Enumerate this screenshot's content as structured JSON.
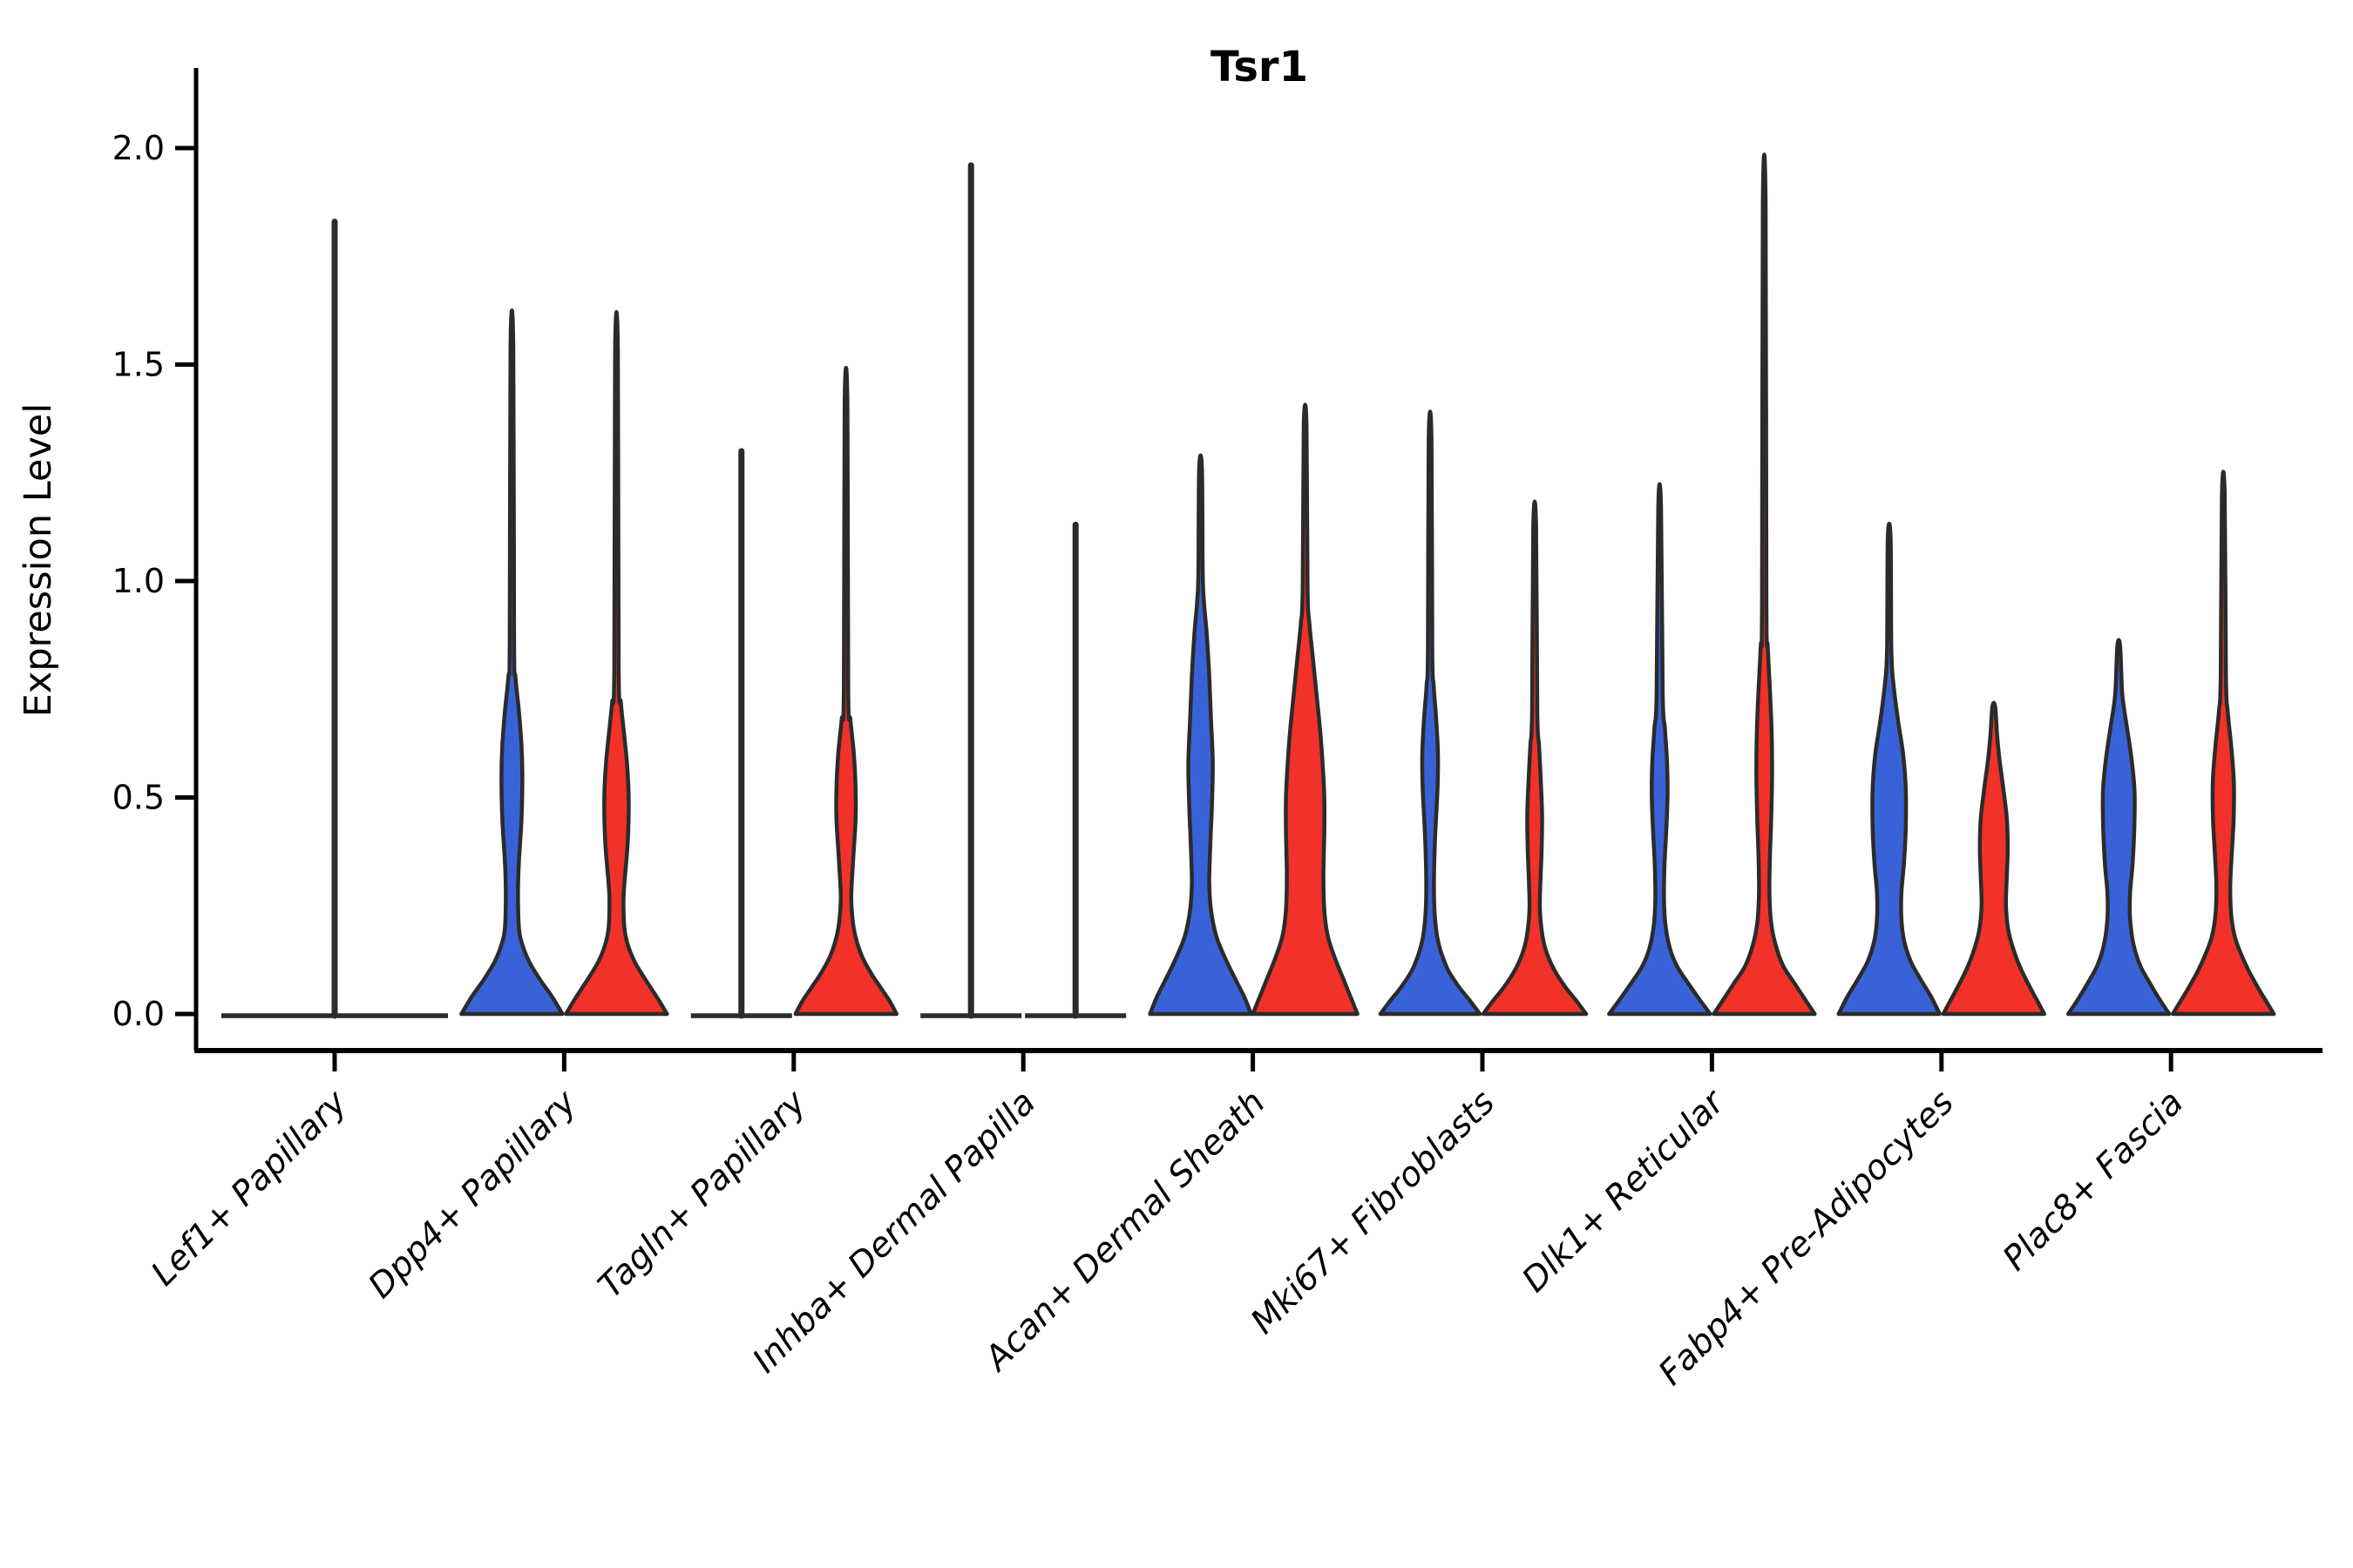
{
  "chart_data": {
    "type": "violin",
    "title": "Tsr1",
    "ylabel": "Expression Level",
    "xlabel": "",
    "ylim": [
      0.0,
      2.05
    ],
    "grid": false,
    "legend": "none",
    "yticks": {
      "values": [
        0.0,
        0.5,
        1.0,
        1.5,
        2.0
      ],
      "labels": [
        "0.0",
        "0.5",
        "1.0",
        "1.5",
        "2.0"
      ]
    },
    "categories": [
      "Lef1+ Papillary",
      "Dpp4+ Papillary",
      "Tagln+ Papillary",
      "Inhba+ Dermal Papilla",
      "Acan+ Dermal Sheath",
      "Mki67+ Fibroblasts",
      "Dlk1+ Reticular",
      "Fabp4+ Pre-Adipocytes",
      "Plac8+ Fascia"
    ],
    "colors": {
      "blue": "#3A62D8",
      "red": "#F23128",
      "outline": "#2B2B2B"
    },
    "groups": [
      {
        "category": "Lef1+ Papillary",
        "violins": [
          {
            "color": "none",
            "side": "center",
            "max": 1.83,
            "flat": true,
            "base_halfwidth": 130
          }
        ]
      },
      {
        "category": "Dpp4+ Papillary",
        "violins": [
          {
            "color": "blue",
            "side": "left",
            "max": 1.54,
            "flat": false,
            "profile": [
              [
                0,
                58
              ],
              [
                0.04,
                46
              ],
              [
                0.08,
                32
              ],
              [
                0.12,
                20
              ],
              [
                0.16,
                12
              ],
              [
                0.2,
                8
              ],
              [
                0.28,
                7
              ],
              [
                0.35,
                8
              ],
              [
                0.45,
                11
              ],
              [
                0.55,
                12
              ],
              [
                0.62,
                11
              ],
              [
                0.7,
                8
              ],
              [
                0.78,
                4
              ],
              [
                0.86,
                2.5
              ]
            ]
          },
          {
            "color": "red",
            "side": "right",
            "max": 1.53,
            "flat": false,
            "profile": [
              [
                0,
                58
              ],
              [
                0.04,
                46
              ],
              [
                0.08,
                33
              ],
              [
                0.12,
                21
              ],
              [
                0.16,
                13
              ],
              [
                0.2,
                9
              ],
              [
                0.26,
                8
              ],
              [
                0.3,
                9
              ],
              [
                0.4,
                13
              ],
              [
                0.5,
                14
              ],
              [
                0.58,
                12
              ],
              [
                0.66,
                8
              ],
              [
                0.72,
                5
              ],
              [
                0.8,
                2.5
              ]
            ]
          }
        ]
      },
      {
        "category": "Tagln+ Papillary",
        "violins": [
          {
            "color": "blue",
            "side": "left",
            "max": 1.3,
            "flat": true,
            "base_halfwidth": 58
          },
          {
            "color": "red",
            "side": "right",
            "max": 1.41,
            "flat": false,
            "profile": [
              [
                0,
                58
              ],
              [
                0.03,
                50
              ],
              [
                0.06,
                40
              ],
              [
                0.09,
                30
              ],
              [
                0.13,
                19
              ],
              [
                0.17,
                12
              ],
              [
                0.21,
                8
              ],
              [
                0.27,
                6
              ],
              [
                0.35,
                8
              ],
              [
                0.45,
                11
              ],
              [
                0.52,
                11
              ],
              [
                0.6,
                9
              ],
              [
                0.68,
                5
              ],
              [
                0.75,
                2.5
              ]
            ]
          }
        ]
      },
      {
        "category": "Inhba+ Dermal Papilla",
        "violins": [
          {
            "color": "blue",
            "side": "left",
            "max": 1.96,
            "flat": true,
            "base_halfwidth": 58
          },
          {
            "color": "red",
            "side": "right",
            "max": 1.13,
            "flat": true,
            "base_halfwidth": 58
          }
        ]
      },
      {
        "category": "Acan+ Dermal Sheath",
        "violins": [
          {
            "color": "blue",
            "side": "left",
            "max": 1.26,
            "flat": false,
            "profile": [
              [
                0,
                58
              ],
              [
                0.04,
                50
              ],
              [
                0.08,
                40
              ],
              [
                0.13,
                28
              ],
              [
                0.18,
                18
              ],
              [
                0.24,
                12
              ],
              [
                0.3,
                10
              ],
              [
                0.38,
                11
              ],
              [
                0.48,
                13
              ],
              [
                0.58,
                14
              ],
              [
                0.68,
                12
              ],
              [
                0.78,
                10
              ],
              [
                0.88,
                7
              ],
              [
                0.95,
                4
              ],
              [
                1.02,
                2.5
              ]
            ]
          },
          {
            "color": "red",
            "side": "right",
            "max": 1.36,
            "flat": false,
            "profile": [
              [
                0,
                60
              ],
              [
                0.04,
                52
              ],
              [
                0.08,
                44
              ],
              [
                0.13,
                34
              ],
              [
                0.18,
                26
              ],
              [
                0.24,
                22
              ],
              [
                0.32,
                21
              ],
              [
                0.42,
                22
              ],
              [
                0.5,
                22
              ],
              [
                0.58,
                20
              ],
              [
                0.66,
                17
              ],
              [
                0.74,
                13
              ],
              [
                0.82,
                9
              ],
              [
                0.9,
                5
              ],
              [
                0.98,
                2.8
              ]
            ]
          }
        ]
      },
      {
        "category": "Mki67+ Fibroblasts",
        "violins": [
          {
            "color": "blue",
            "side": "left",
            "max": 1.33,
            "flat": false,
            "profile": [
              [
                0,
                57
              ],
              [
                0.03,
                46
              ],
              [
                0.06,
                34
              ],
              [
                0.1,
                21
              ],
              [
                0.14,
                13
              ],
              [
                0.18,
                8
              ],
              [
                0.24,
                5
              ],
              [
                0.32,
                4.5
              ],
              [
                0.42,
                6
              ],
              [
                0.52,
                8.5
              ],
              [
                0.6,
                9
              ],
              [
                0.68,
                7
              ],
              [
                0.76,
                4
              ],
              [
                0.84,
                2.5
              ]
            ]
          },
          {
            "color": "red",
            "side": "right",
            "max": 1.13,
            "flat": false,
            "profile": [
              [
                0,
                59
              ],
              [
                0.03,
                48
              ],
              [
                0.06,
                36
              ],
              [
                0.1,
                23
              ],
              [
                0.14,
                14
              ],
              [
                0.18,
                9
              ],
              [
                0.24,
                6
              ],
              [
                0.3,
                6.5
              ],
              [
                0.38,
                8
              ],
              [
                0.46,
                8.5
              ],
              [
                0.54,
                7
              ],
              [
                0.62,
                5
              ],
              [
                0.7,
                3
              ]
            ]
          }
        ]
      },
      {
        "category": "Dlk1+ Reticular",
        "violins": [
          {
            "color": "blue",
            "side": "left",
            "max": 1.17,
            "flat": false,
            "profile": [
              [
                0,
                58
              ],
              [
                0.03,
                47
              ],
              [
                0.07,
                33
              ],
              [
                0.11,
                20
              ],
              [
                0.15,
                12
              ],
              [
                0.2,
                7
              ],
              [
                0.26,
                5
              ],
              [
                0.34,
                5.5
              ],
              [
                0.42,
                7.5
              ],
              [
                0.5,
                9
              ],
              [
                0.58,
                8.5
              ],
              [
                0.66,
                6
              ],
              [
                0.74,
                3.5
              ]
            ]
          },
          {
            "color": "red",
            "side": "right",
            "max": 1.87,
            "flat": false,
            "profile": [
              [
                0,
                58
              ],
              [
                0.03,
                48
              ],
              [
                0.07,
                35
              ],
              [
                0.11,
                22
              ],
              [
                0.16,
                13
              ],
              [
                0.21,
                8
              ],
              [
                0.28,
                6
              ],
              [
                0.36,
                6.5
              ],
              [
                0.45,
                8
              ],
              [
                0.55,
                9
              ],
              [
                0.65,
                8.5
              ],
              [
                0.75,
                6.5
              ],
              [
                0.85,
                4
              ],
              [
                0.95,
                2.5
              ]
            ]
          }
        ]
      },
      {
        "category": "Fabp4+ Pre-Adipocytes",
        "violins": [
          {
            "color": "blue",
            "side": "left",
            "max": 1.1,
            "flat": false,
            "profile": [
              [
                0,
                58
              ],
              [
                0.04,
                48
              ],
              [
                0.08,
                36
              ],
              [
                0.12,
                25
              ],
              [
                0.17,
                17
              ],
              [
                0.22,
                14
              ],
              [
                0.28,
                14
              ],
              [
                0.35,
                17
              ],
              [
                0.43,
                19
              ],
              [
                0.52,
                19
              ],
              [
                0.6,
                16
              ],
              [
                0.68,
                10
              ],
              [
                0.76,
                5
              ],
              [
                0.84,
                2.5
              ]
            ]
          },
          {
            "color": "red",
            "side": "right",
            "max": 0.71,
            "flat": false,
            "profile": [
              [
                0,
                58
              ],
              [
                0.03,
                50
              ],
              [
                0.06,
                42
              ],
              [
                0.1,
                32
              ],
              [
                0.14,
                24
              ],
              [
                0.19,
                17
              ],
              [
                0.25,
                14
              ],
              [
                0.32,
                15
              ],
              [
                0.38,
                16
              ],
              [
                0.45,
                15
              ],
              [
                0.52,
                11
              ],
              [
                0.58,
                7
              ],
              [
                0.64,
                4
              ]
            ]
          }
        ]
      },
      {
        "category": "Plac8+ Fascia",
        "violins": [
          {
            "color": "blue",
            "side": "left",
            "max": 0.85,
            "flat": false,
            "profile": [
              [
                0,
                58
              ],
              [
                0.03,
                48
              ],
              [
                0.07,
                36
              ],
              [
                0.11,
                25
              ],
              [
                0.16,
                17
              ],
              [
                0.22,
                13
              ],
              [
                0.28,
                13
              ],
              [
                0.35,
                16
              ],
              [
                0.44,
                18
              ],
              [
                0.52,
                18
              ],
              [
                0.6,
                14
              ],
              [
                0.68,
                8
              ],
              [
                0.74,
                4
              ]
            ]
          },
          {
            "color": "red",
            "side": "right",
            "max": 1.2,
            "flat": false,
            "profile": [
              [
                0,
                58
              ],
              [
                0.03,
                49
              ],
              [
                0.06,
                40
              ],
              [
                0.1,
                29
              ],
              [
                0.14,
                20
              ],
              [
                0.18,
                13
              ],
              [
                0.23,
                9
              ],
              [
                0.3,
                8
              ],
              [
                0.38,
                10
              ],
              [
                0.46,
                12
              ],
              [
                0.54,
                12
              ],
              [
                0.62,
                9
              ],
              [
                0.7,
                5
              ],
              [
                0.78,
                3
              ]
            ]
          }
        ]
      }
    ]
  }
}
